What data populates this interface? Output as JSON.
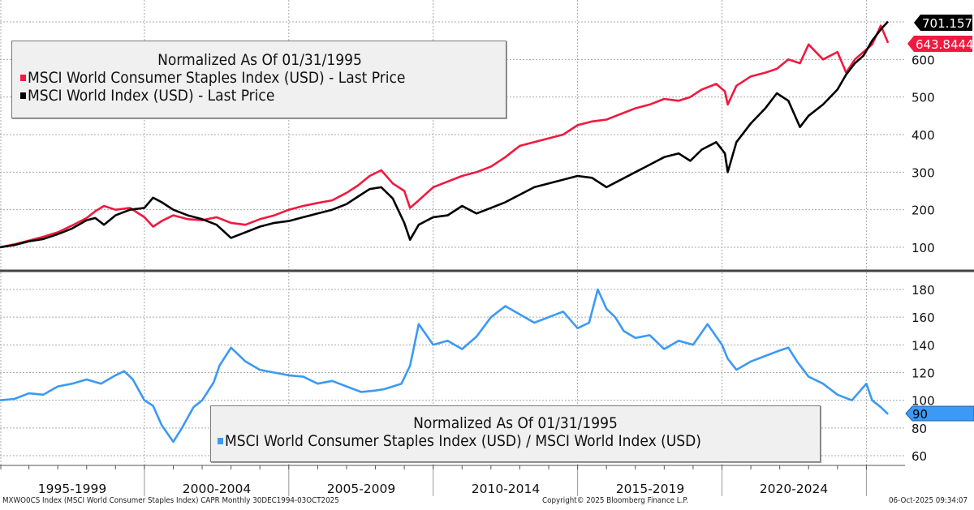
{
  "top_legend": {
    "title": "Normalized As Of 01/31/1995",
    "items": [
      {
        "label": "MSCI World Consumer Staples Index (USD) - Last Price",
        "color": "#f2183f"
      },
      {
        "label": "MSCI World Index (USD) - Last Price",
        "color": "#000000"
      }
    ]
  },
  "bottom_legend": {
    "title": "Normalized As Of 01/31/1995",
    "items": [
      {
        "label": "MSCI World Consumer Staples Index (USD) / MSCI World Index (USD)",
        "color": "#3a9af5"
      }
    ]
  },
  "last_value_tags": {
    "world": "701.1575",
    "staples": "643.8444",
    "ratio": "90"
  },
  "x_periods": [
    "1995-1999",
    "2000-2004",
    "2005-2009",
    "2010-2014",
    "2015-2019",
    "2020-2024"
  ],
  "footer": {
    "left": "MXWO0CS Index (MSCI World Consumer Staples Index) CAPR Monthly 30DEC1994-03OCT2025",
    "center": "Copyright© 2025 Bloomberg Finance L.P.",
    "right": "06-Oct-2025 09:34:07"
  },
  "chart_data": [
    {
      "type": "line",
      "title": "Normalized As Of 01/31/1995",
      "xlabel": "",
      "ylabel": "",
      "xlim": [
        1995.0,
        2025.8
      ],
      "ylim": [
        60,
        760
      ],
      "yticks": [
        100,
        200,
        300,
        400,
        500,
        600
      ],
      "grid": true,
      "legend": "top-left",
      "x": [
        1995.0,
        1995.5,
        1996.0,
        1996.5,
        1997.0,
        1997.5,
        1998.0,
        1998.3,
        1998.6,
        1999.0,
        1999.5,
        2000.0,
        2000.3,
        2000.6,
        2001.0,
        2001.5,
        2002.0,
        2002.5,
        2003.0,
        2003.5,
        2004.0,
        2004.5,
        2005.0,
        2005.5,
        2006.0,
        2006.5,
        2007.0,
        2007.4,
        2007.8,
        2008.2,
        2008.6,
        2009.0,
        2009.2,
        2009.5,
        2010.0,
        2010.5,
        2011.0,
        2011.5,
        2012.0,
        2012.5,
        2013.0,
        2013.5,
        2014.0,
        2014.5,
        2015.0,
        2015.5,
        2016.0,
        2016.5,
        2017.0,
        2017.5,
        2018.0,
        2018.5,
        2018.9,
        2019.3,
        2019.8,
        2020.1,
        2020.2,
        2020.5,
        2021.0,
        2021.5,
        2021.9,
        2022.3,
        2022.7,
        2023.0,
        2023.5,
        2024.0,
        2024.3,
        2024.6,
        2024.9,
        2025.2,
        2025.5,
        2025.75
      ],
      "series": [
        {
          "name": "MSCI World Consumer Staples Index (USD) - Last Price",
          "color": "#f2183f",
          "values": [
            100,
            108,
            118,
            128,
            140,
            158,
            178,
            196,
            210,
            200,
            205,
            180,
            155,
            170,
            185,
            175,
            172,
            180,
            165,
            160,
            175,
            185,
            200,
            210,
            218,
            225,
            245,
            265,
            290,
            305,
            270,
            250,
            205,
            225,
            260,
            275,
            290,
            300,
            315,
            340,
            370,
            380,
            390,
            400,
            425,
            435,
            440,
            455,
            470,
            480,
            495,
            490,
            500,
            520,
            535,
            515,
            480,
            530,
            555,
            565,
            575,
            600,
            590,
            640,
            600,
            620,
            565,
            600,
            620,
            640,
            690,
            644
          ]
        },
        {
          "name": "MSCI World Index (USD) - Last Price",
          "color": "#000000",
          "values": [
            100,
            106,
            116,
            122,
            135,
            150,
            172,
            178,
            160,
            185,
            200,
            205,
            232,
            220,
            200,
            185,
            175,
            160,
            125,
            140,
            155,
            165,
            170,
            180,
            190,
            200,
            215,
            235,
            255,
            260,
            230,
            165,
            120,
            160,
            180,
            185,
            210,
            190,
            205,
            220,
            240,
            260,
            270,
            280,
            290,
            285,
            260,
            280,
            300,
            320,
            340,
            350,
            330,
            360,
            380,
            350,
            300,
            380,
            430,
            470,
            510,
            490,
            420,
            450,
            480,
            520,
            560,
            590,
            610,
            650,
            680,
            701
          ]
        }
      ]
    },
    {
      "type": "line",
      "title": "Normalized As Of 01/31/1995",
      "xlabel": "",
      "ylabel": "",
      "xlim": [
        1995.0,
        2025.8
      ],
      "ylim": [
        50,
        190
      ],
      "yticks": [
        60,
        80,
        100,
        120,
        140,
        160,
        180
      ],
      "grid": true,
      "legend": "bottom-center",
      "x": [
        1995.0,
        1995.5,
        1996.0,
        1996.5,
        1997.0,
        1997.5,
        1998.0,
        1998.5,
        1999.0,
        1999.3,
        1999.6,
        2000.0,
        2000.3,
        2000.6,
        2001.0,
        2001.3,
        2001.7,
        2002.0,
        2002.4,
        2002.6,
        2003.0,
        2003.5,
        2004.0,
        2004.5,
        2005.0,
        2005.5,
        2006.0,
        2006.5,
        2007.0,
        2007.5,
        2008.0,
        2008.3,
        2008.6,
        2008.9,
        2009.2,
        2009.5,
        2010.0,
        2010.5,
        2011.0,
        2011.5,
        2012.0,
        2012.5,
        2013.0,
        2013.5,
        2014.0,
        2014.5,
        2015.0,
        2015.4,
        2015.7,
        2016.0,
        2016.3,
        2016.6,
        2017.0,
        2017.5,
        2018.0,
        2018.5,
        2019.0,
        2019.5,
        2020.0,
        2020.2,
        2020.5,
        2021.0,
        2021.5,
        2022.0,
        2022.3,
        2022.6,
        2023.0,
        2023.5,
        2024.0,
        2024.5,
        2025.0,
        2025.2,
        2025.5,
        2025.75
      ],
      "series": [
        {
          "name": "MSCI World Consumer Staples Index (USD) / MSCI World Index (USD)",
          "color": "#3a9af5",
          "values": [
            100,
            101,
            105,
            104,
            110,
            112,
            115,
            112,
            118,
            121,
            115,
            100,
            96,
            82,
            70,
            80,
            95,
            100,
            113,
            125,
            138,
            128,
            122,
            120,
            118,
            117,
            112,
            114,
            110,
            106,
            107,
            108,
            110,
            112,
            125,
            155,
            140,
            143,
            137,
            146,
            160,
            168,
            162,
            156,
            160,
            164,
            152,
            156,
            180,
            166,
            160,
            150,
            145,
            147,
            137,
            143,
            140,
            155,
            140,
            130,
            122,
            128,
            132,
            136,
            138,
            128,
            117,
            112,
            104,
            100,
            112,
            100,
            95,
            90
          ]
        }
      ]
    }
  ]
}
